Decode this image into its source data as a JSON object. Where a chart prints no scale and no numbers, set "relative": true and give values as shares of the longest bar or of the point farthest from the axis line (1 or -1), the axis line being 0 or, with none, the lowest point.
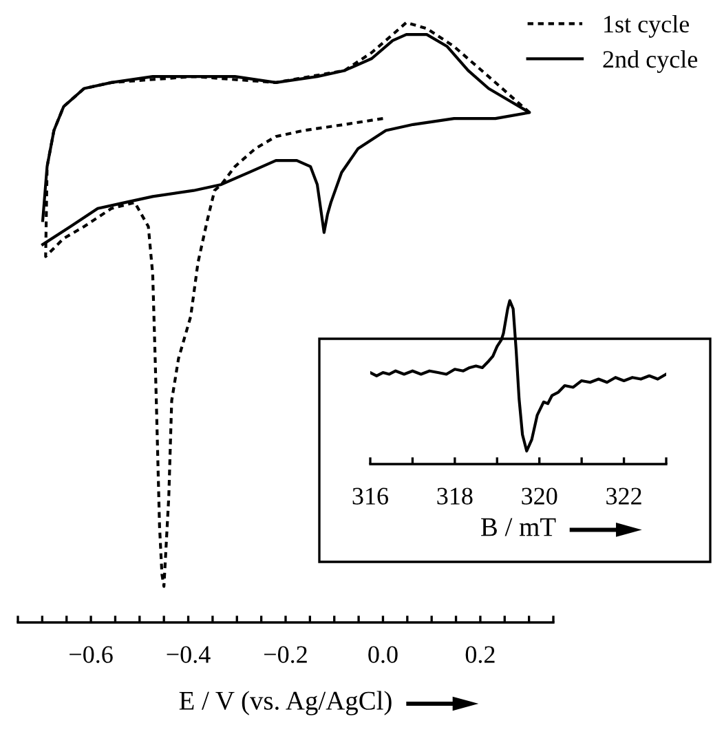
{
  "chart_data": [
    {
      "type": "line",
      "relative": true,
      "xlabel": "E / V (vs. Ag/AgCl)",
      "xlim": [
        -0.75,
        0.35
      ],
      "xticks": [
        {
          "value": -0.75,
          "label": null
        },
        {
          "value": -0.7,
          "label": null
        },
        {
          "value": -0.65,
          "label": null
        },
        {
          "value": -0.6,
          "label": "−0.6"
        },
        {
          "value": -0.55,
          "label": null
        },
        {
          "value": -0.5,
          "label": null
        },
        {
          "value": -0.45,
          "label": null
        },
        {
          "value": -0.4,
          "label": "−0.4"
        },
        {
          "value": -0.35,
          "label": null
        },
        {
          "value": -0.3,
          "label": null
        },
        {
          "value": -0.25,
          "label": null
        },
        {
          "value": -0.2,
          "label": "−0.2"
        },
        {
          "value": -0.15,
          "label": null
        },
        {
          "value": -0.1,
          "label": null
        },
        {
          "value": -0.05,
          "label": null
        },
        {
          "value": 0,
          "label": "0.0"
        },
        {
          "value": 0.05,
          "label": null
        },
        {
          "value": 0.1,
          "label": null
        },
        {
          "value": 0.15,
          "label": null
        },
        {
          "value": 0.2,
          "label": "0.2"
        },
        {
          "value": 0.25,
          "label": null
        },
        {
          "value": 0.3,
          "label": null
        },
        {
          "value": 0.35,
          "label": null
        }
      ],
      "legend": "top right",
      "grid": false,
      "marker": "none",
      "tick_labels": "x",
      "series": [
        {
          "name": "1st cycle",
          "color": "#000000",
          "line_style": "dotted",
          "x": [
            0.0,
            -0.079,
            -0.163,
            -0.22,
            -0.262,
            -0.304,
            -0.332,
            -0.346,
            -0.361,
            -0.38,
            -0.395,
            -0.42,
            -0.434,
            -0.44,
            -0.448,
            -0.45,
            -0.454,
            -0.459,
            -0.465,
            -0.468,
            -0.473,
            -0.482,
            -0.51,
            -0.558,
            -0.614,
            -0.656,
            -0.693,
            -0.69,
            -0.676,
            -0.656,
            -0.614,
            -0.558,
            -0.389,
            -0.22,
            -0.079,
            -0.023,
            0.02,
            0.048,
            0.09,
            0.146,
            0.217,
            0.259,
            0.301
          ],
          "values": [
            0.84,
            0.83,
            0.82,
            0.81,
            0.79,
            0.76,
            0.73,
            0.72,
            0.67,
            0.6,
            0.51,
            0.44,
            0.37,
            0.21,
            0.09,
            0.06,
            0.08,
            0.16,
            0.35,
            0.44,
            0.58,
            0.66,
            0.7,
            0.69,
            0.66,
            0.64,
            0.61,
            0.76,
            0.82,
            0.86,
            0.89,
            0.9,
            0.91,
            0.9,
            0.92,
            0.95,
            0.98,
            1.0,
            0.99,
            0.96,
            0.91,
            0.88,
            0.85
          ]
        },
        {
          "name": "2nd cycle",
          "color": "#000000",
          "line_style": "solid",
          "x": [
            -0.699,
            -0.642,
            -0.586,
            -0.53,
            -0.473,
            -0.389,
            -0.332,
            -0.276,
            -0.22,
            -0.177,
            -0.149,
            -0.135,
            -0.128,
            -0.121,
            -0.114,
            -0.107,
            -0.085,
            -0.051,
            0.006,
            0.062,
            0.146,
            0.231,
            0.301,
            0.259,
            0.217,
            0.175,
            0.132,
            0.09,
            0.048,
            0.02,
            -0.023,
            -0.079,
            -0.135,
            -0.22,
            -0.304,
            -0.389,
            -0.473,
            -0.558,
            -0.614,
            -0.656,
            -0.676,
            -0.69,
            -0.699
          ],
          "values": [
            0.63,
            0.66,
            0.69,
            0.7,
            0.71,
            0.72,
            0.73,
            0.75,
            0.77,
            0.77,
            0.76,
            0.73,
            0.69,
            0.65,
            0.68,
            0.7,
            0.75,
            0.79,
            0.82,
            0.83,
            0.84,
            0.84,
            0.85,
            0.87,
            0.89,
            0.92,
            0.96,
            0.98,
            0.98,
            0.97,
            0.94,
            0.92,
            0.91,
            0.9,
            0.91,
            0.91,
            0.91,
            0.9,
            0.89,
            0.86,
            0.82,
            0.76,
            0.67
          ]
        }
      ]
    },
    {
      "type": "line",
      "relative": true,
      "xlabel": "B / mT",
      "xlim": [
        316,
        323
      ],
      "xticks": [
        316,
        {
          "value": 317,
          "label": null
        },
        318,
        {
          "value": 319,
          "label": null
        },
        320,
        {
          "value": 321,
          "label": null
        },
        322,
        {
          "value": 323,
          "label": null
        }
      ],
      "grid": false,
      "marker": "none",
      "tick_labels": "x",
      "series": [
        {
          "color": "#000000",
          "line_style": "solid",
          "x": [
            316.0,
            316.15,
            316.3,
            316.45,
            316.6,
            316.8,
            317.0,
            317.2,
            317.4,
            317.6,
            317.8,
            318.0,
            318.2,
            318.35,
            318.5,
            318.65,
            318.8,
            318.9,
            319.0,
            319.1,
            319.15,
            319.25,
            319.3,
            319.38,
            319.45,
            319.52,
            319.6,
            319.7,
            319.82,
            319.95,
            320.1,
            320.2,
            320.3,
            320.45,
            320.6,
            320.8,
            321.0,
            321.2,
            321.4,
            321.6,
            321.8,
            322.0,
            322.2,
            322.4,
            322.6,
            322.8,
            323.0
          ],
          "values": [
            0.56,
            0.54,
            0.56,
            0.55,
            0.57,
            0.55,
            0.57,
            0.55,
            0.57,
            0.56,
            0.55,
            0.58,
            0.57,
            0.59,
            0.6,
            0.59,
            0.63,
            0.66,
            0.72,
            0.76,
            0.8,
            0.95,
            1.0,
            0.95,
            0.7,
            0.4,
            0.18,
            0.08,
            0.15,
            0.3,
            0.38,
            0.37,
            0.42,
            0.44,
            0.48,
            0.47,
            0.51,
            0.5,
            0.52,
            0.5,
            0.53,
            0.51,
            0.53,
            0.52,
            0.54,
            0.52,
            0.55
          ]
        }
      ]
    }
  ]
}
